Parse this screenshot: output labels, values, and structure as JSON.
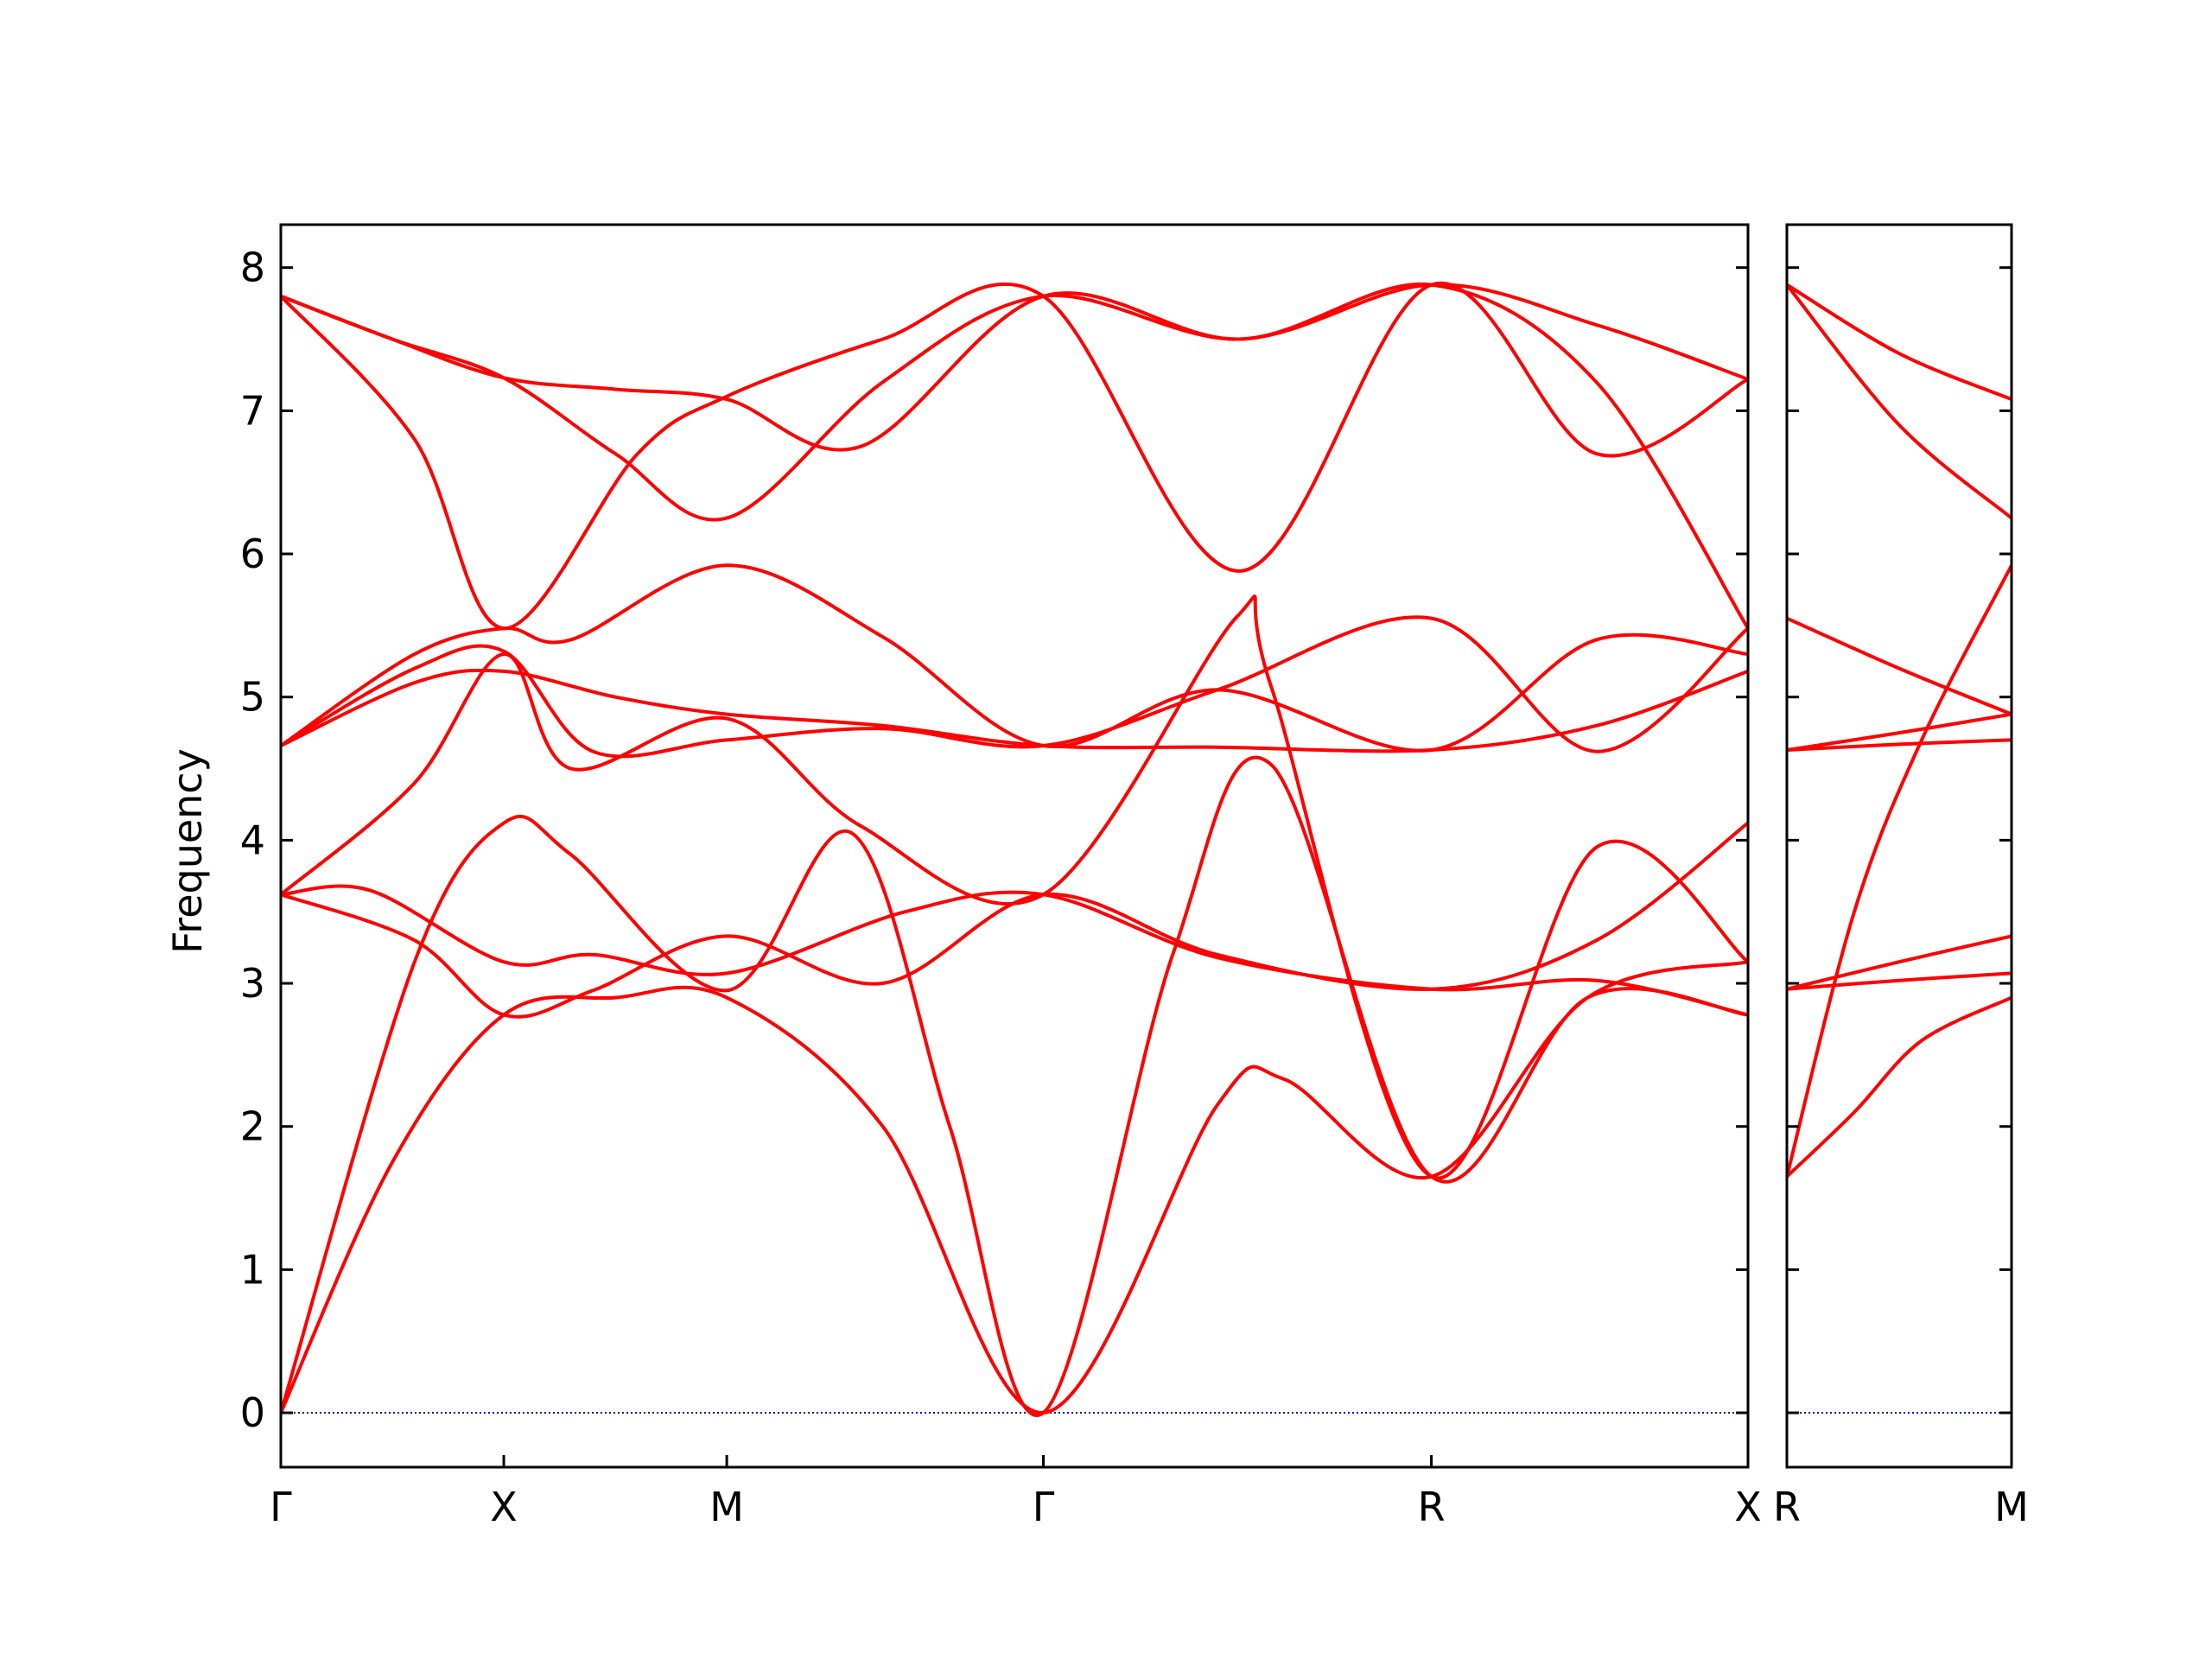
{
  "chart_data": {
    "type": "line",
    "ylabel": "Frequency",
    "xlabel": "",
    "ylim": [
      -0.38,
      8.3
    ],
    "yticks": [
      0,
      1,
      2,
      3,
      4,
      5,
      6,
      7,
      8
    ],
    "grid": false,
    "legend": "none",
    "colors": {
      "bands": "#ff0000",
      "zero_line": "#0000aa",
      "frame": "#000000"
    },
    "panels": [
      {
        "id": "main",
        "xlim": [
          0,
          3.29
        ],
        "high_symmetry_points": [
          {
            "label": "Γ",
            "x": 0
          },
          {
            "label": "X",
            "x": 0.5
          },
          {
            "label": "M",
            "x": 1.0
          },
          {
            "label": "Γ",
            "x": 1.71
          },
          {
            "label": "R",
            "x": 2.58
          },
          {
            "label": "X",
            "x": 3.29
          }
        ],
        "bands": [
          {
            "name": "acoustic-1",
            "points": [
              [
                0,
                0
              ],
              [
                0.25,
                1.75
              ],
              [
                0.5,
                2.78
              ],
              [
                0.75,
                2.9
              ],
              [
                1.0,
                2.9
              ],
              [
                1.35,
                2.0
              ],
              [
                1.71,
                0
              ],
              [
                2.1,
                2.15
              ],
              [
                2.25,
                2.33
              ],
              [
                2.58,
                1.65
              ],
              [
                2.93,
                2.9
              ],
              [
                3.29,
                3.15
              ]
            ]
          },
          {
            "name": "acoustic-2",
            "points": [
              [
                0,
                0
              ],
              [
                0.3,
                3.15
              ],
              [
                0.5,
                4.12
              ],
              [
                0.65,
                3.9
              ],
              [
                1.0,
                2.95
              ],
              [
                1.28,
                4.05
              ],
              [
                1.5,
                2.0
              ],
              [
                1.71,
                0
              ],
              [
                2.0,
                3.2
              ],
              [
                2.22,
                4.53
              ],
              [
                2.58,
                1.65
              ],
              [
                2.93,
                2.9
              ],
              [
                3.29,
                2.78
              ]
            ]
          },
          {
            "name": "acoustic-3",
            "points": [
              [
                0,
                3.62
              ],
              [
                0.3,
                4.4
              ],
              [
                0.5,
                5.3
              ],
              [
                0.65,
                4.5
              ],
              [
                1.0,
                4.85
              ],
              [
                1.3,
                4.1
              ],
              [
                1.71,
                3.62
              ],
              [
                2.15,
                5.58
              ],
              [
                2.22,
                5.08
              ],
              [
                2.58,
                1.65
              ],
              [
                2.95,
                3.95
              ],
              [
                3.29,
                3.15
              ]
            ]
          },
          {
            "name": "optical-1",
            "points": [
              [
                0,
                3.62
              ],
              [
                0.2,
                3.65
              ],
              [
                0.5,
                3.15
              ],
              [
                0.7,
                3.2
              ],
              [
                1.0,
                3.07
              ],
              [
                1.4,
                3.5
              ],
              [
                1.71,
                3.62
              ],
              [
                2.1,
                3.18
              ],
              [
                2.58,
                2.96
              ],
              [
                2.95,
                3.02
              ],
              [
                3.29,
                2.78
              ]
            ]
          },
          {
            "name": "optical-2",
            "points": [
              [
                0,
                3.62
              ],
              [
                0.3,
                3.3
              ],
              [
                0.5,
                2.78
              ],
              [
                0.7,
                2.95
              ],
              [
                1.0,
                3.33
              ],
              [
                1.35,
                3.0
              ],
              [
                1.71,
                3.62
              ],
              [
                2.1,
                3.2
              ],
              [
                2.58,
                2.96
              ],
              [
                2.95,
                3.3
              ],
              [
                3.29,
                4.12
              ]
            ]
          },
          {
            "name": "optical-3",
            "points": [
              [
                0,
                4.66
              ],
              [
                0.3,
                5.1
              ],
              [
                0.5,
                5.18
              ],
              [
                0.75,
                5.0
              ],
              [
                1.0,
                4.88
              ],
              [
                1.35,
                4.8
              ],
              [
                1.71,
                4.66
              ],
              [
                2.1,
                4.65
              ],
              [
                2.58,
                4.63
              ],
              [
                2.95,
                4.8
              ],
              [
                3.29,
                5.18
              ]
            ]
          },
          {
            "name": "optical-4",
            "points": [
              [
                0,
                4.66
              ],
              [
                0.3,
                5.3
              ],
              [
                0.5,
                5.48
              ],
              [
                0.65,
                5.4
              ],
              [
                1.0,
                5.92
              ],
              [
                1.35,
                5.42
              ],
              [
                1.71,
                4.66
              ],
              [
                2.1,
                5.05
              ],
              [
                2.58,
                4.63
              ],
              [
                2.95,
                5.4
              ],
              [
                3.29,
                5.3
              ]
            ]
          },
          {
            "name": "optical-5",
            "points": [
              [
                0,
                4.66
              ],
              [
                0.3,
                5.2
              ],
              [
                0.5,
                5.32
              ],
              [
                0.7,
                4.62
              ],
              [
                1.0,
                4.7
              ],
              [
                1.35,
                4.78
              ],
              [
                1.71,
                4.66
              ],
              [
                2.1,
                5.05
              ],
              [
                2.58,
                5.55
              ],
              [
                2.95,
                4.62
              ],
              [
                3.29,
                5.48
              ]
            ]
          },
          {
            "name": "optical-6",
            "points": [
              [
                0,
                7.8
              ],
              [
                0.3,
                6.8
              ],
              [
                0.5,
                5.48
              ],
              [
                0.8,
                6.7
              ],
              [
                1.0,
                7.1
              ],
              [
                1.35,
                7.5
              ],
              [
                1.71,
                7.8
              ],
              [
                2.15,
                5.88
              ],
              [
                2.58,
                7.88
              ],
              [
                2.95,
                6.7
              ],
              [
                3.29,
                7.22
              ]
            ]
          },
          {
            "name": "optical-7",
            "points": [
              [
                0,
                7.8
              ],
              [
                0.25,
                7.5
              ],
              [
                0.5,
                7.23
              ],
              [
                0.75,
                6.7
              ],
              [
                1.0,
                6.25
              ],
              [
                1.35,
                7.2
              ],
              [
                1.71,
                7.8
              ],
              [
                2.15,
                7.5
              ],
              [
                2.58,
                7.88
              ],
              [
                2.95,
                7.2
              ],
              [
                3.29,
                5.48
              ]
            ]
          },
          {
            "name": "optical-8",
            "points": [
              [
                0,
                7.8
              ],
              [
                0.25,
                7.5
              ],
              [
                0.5,
                7.23
              ],
              [
                0.75,
                7.15
              ],
              [
                1.0,
                7.08
              ],
              [
                1.3,
                6.75
              ],
              [
                1.71,
                7.8
              ],
              [
                2.15,
                7.5
              ],
              [
                2.58,
                7.88
              ],
              [
                2.95,
                7.6
              ],
              [
                3.29,
                7.22
              ]
            ]
          }
        ]
      },
      {
        "id": "right",
        "xlim": [
          0,
          0.5
        ],
        "high_symmetry_points": [
          {
            "label": "R",
            "x": 0
          },
          {
            "label": "M",
            "x": 0.5
          }
        ],
        "bands": [
          {
            "name": "rm-1",
            "points": [
              [
                0,
                1.65
              ],
              [
                0.15,
                2.1
              ],
              [
                0.3,
                2.6
              ],
              [
                0.5,
                2.9
              ]
            ]
          },
          {
            "name": "rm-2",
            "points": [
              [
                0,
                1.65
              ],
              [
                0.15,
                3.5
              ],
              [
                0.3,
                4.7
              ],
              [
                0.5,
                5.92
              ]
            ]
          },
          {
            "name": "rm-3",
            "points": [
              [
                0,
                2.96
              ],
              [
                0.25,
                3.15
              ],
              [
                0.5,
                3.33
              ]
            ]
          },
          {
            "name": "rm-4",
            "points": [
              [
                0,
                2.96
              ],
              [
                0.25,
                3.02
              ],
              [
                0.5,
                3.07
              ]
            ]
          },
          {
            "name": "rm-5",
            "points": [
              [
                0,
                4.63
              ],
              [
                0.25,
                4.67
              ],
              [
                0.5,
                4.7
              ]
            ]
          },
          {
            "name": "rm-6",
            "points": [
              [
                0,
                4.63
              ],
              [
                0.25,
                4.75
              ],
              [
                0.5,
                4.88
              ]
            ]
          },
          {
            "name": "rm-7",
            "points": [
              [
                0,
                5.55
              ],
              [
                0.25,
                5.2
              ],
              [
                0.5,
                4.88
              ]
            ]
          },
          {
            "name": "rm-8",
            "points": [
              [
                0,
                7.88
              ],
              [
                0.25,
                6.9
              ],
              [
                0.5,
                6.25
              ]
            ]
          },
          {
            "name": "rm-9",
            "points": [
              [
                0,
                7.88
              ],
              [
                0.25,
                7.4
              ],
              [
                0.5,
                7.08
              ]
            ]
          }
        ]
      }
    ]
  }
}
